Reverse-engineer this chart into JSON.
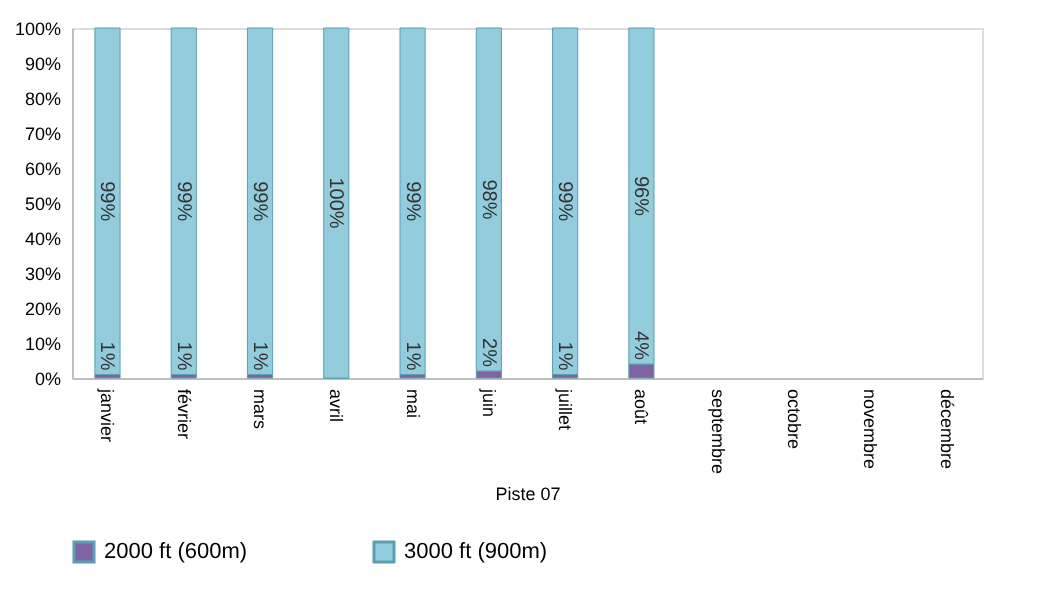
{
  "chart_data": {
    "type": "bar",
    "stacked": true,
    "xlabel": "Piste 07",
    "categories": [
      "janvier",
      "février",
      "mars",
      "avril",
      "mai",
      "juin",
      "juillet",
      "août",
      "septembre",
      "octobre",
      "novembre",
      "décembre"
    ],
    "series": [
      {
        "name": "2000 ft (600m)",
        "color": "#8064a2",
        "values": [
          1,
          1,
          1,
          0,
          1,
          2,
          1,
          4,
          null,
          null,
          null,
          null
        ],
        "value_labels": [
          "1%",
          "1%",
          "1%",
          null,
          "1%",
          "2%",
          "1%",
          "4%",
          null,
          null,
          null,
          null
        ]
      },
      {
        "name": "3000 ft (900m)",
        "color": "#93cddd",
        "values": [
          99,
          99,
          99,
          100,
          99,
          98,
          99,
          96,
          null,
          null,
          null,
          null
        ],
        "value_labels": [
          "99%",
          "99%",
          "99%",
          "100%",
          "99%",
          "98%",
          "99%",
          "96%",
          null,
          null,
          null,
          null
        ]
      }
    ],
    "ylim": [
      0,
      100
    ],
    "yticks": [
      {
        "value": 0,
        "label": "0%"
      },
      {
        "value": 10,
        "label": "10%"
      },
      {
        "value": 20,
        "label": "20%"
      },
      {
        "value": 30,
        "label": "30%"
      },
      {
        "value": 40,
        "label": "40%"
      },
      {
        "value": 50,
        "label": "50%"
      },
      {
        "value": 60,
        "label": "60%"
      },
      {
        "value": 70,
        "label": "70%"
      },
      {
        "value": 80,
        "label": "80%"
      },
      {
        "value": 90,
        "label": "90%"
      },
      {
        "value": 100,
        "label": "100%"
      }
    ],
    "grid": false,
    "legend": "bottom"
  }
}
